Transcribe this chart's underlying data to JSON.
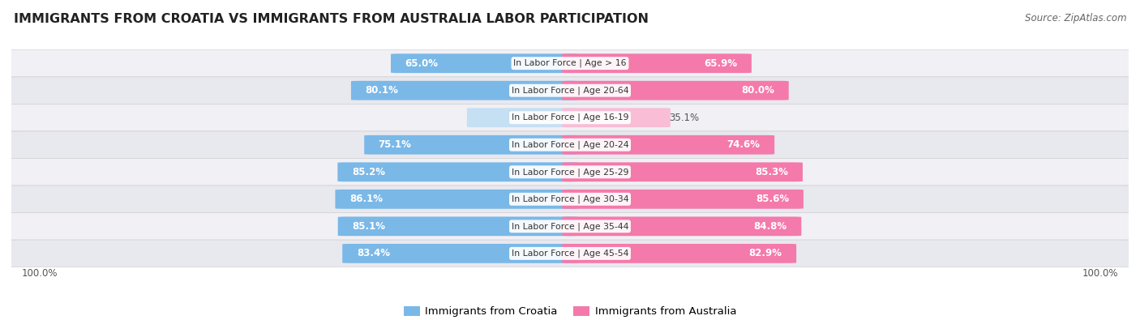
{
  "title": "IMMIGRANTS FROM CROATIA VS IMMIGRANTS FROM AUSTRALIA LABOR PARTICIPATION",
  "source": "Source: ZipAtlas.com",
  "categories": [
    "In Labor Force | Age > 16",
    "In Labor Force | Age 20-64",
    "In Labor Force | Age 16-19",
    "In Labor Force | Age 20-24",
    "In Labor Force | Age 25-29",
    "In Labor Force | Age 30-34",
    "In Labor Force | Age 35-44",
    "In Labor Force | Age 45-54"
  ],
  "croatia_values": [
    65.0,
    80.1,
    36.1,
    75.1,
    85.2,
    86.1,
    85.1,
    83.4
  ],
  "australia_values": [
    65.9,
    80.0,
    35.1,
    74.6,
    85.3,
    85.6,
    84.8,
    82.9
  ],
  "croatia_color_strong": "#7ab8e8",
  "croatia_color_light": "#c5dff3",
  "australia_color_strong": "#f47aab",
  "australia_color_light": "#f9bdd5",
  "row_bg_even": "#f0f0f5",
  "row_bg_odd": "#e8e8ef",
  "threshold_white_label": 50.0,
  "legend_croatia": "Immigrants from Croatia",
  "legend_australia": "Immigrants from Australia",
  "max_value": 100.0,
  "title_fontsize": 11.5,
  "source_fontsize": 8.5,
  "bar_label_fontsize": 8.5,
  "category_fontsize": 7.8,
  "legend_fontsize": 9.5
}
